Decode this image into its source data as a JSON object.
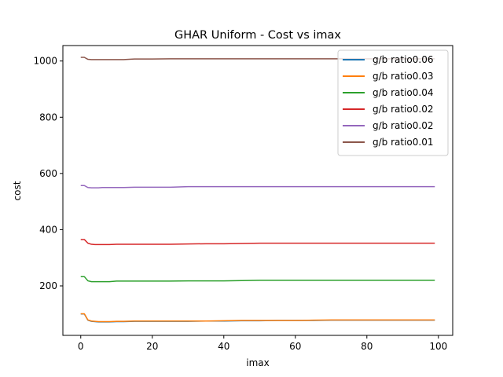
{
  "chart_data": {
    "type": "line",
    "title": "GHAR Uniform - Cost vs imax",
    "xlabel": "imax",
    "ylabel": "cost",
    "xlim": [
      -5,
      104
    ],
    "ylim": [
      24,
      1055
    ],
    "xticks": [
      0,
      20,
      40,
      60,
      80,
      100
    ],
    "yticks": [
      200,
      400,
      600,
      800,
      1000
    ],
    "legend_position": "top-right",
    "grid": false,
    "series": [
      {
        "name": "g/b ratio0.06",
        "color": "#1f77b4",
        "x": [
          0,
          1,
          2,
          3,
          4,
          5,
          6,
          8,
          10,
          12,
          15,
          20,
          25,
          30,
          35,
          40,
          45,
          50,
          55,
          60,
          65,
          70,
          75,
          80,
          85,
          90,
          95,
          99
        ],
        "y": [
          100,
          100,
          78,
          74,
          73,
          72,
          72,
          72,
          73,
          73,
          74,
          74,
          74,
          74,
          75,
          75,
          76,
          76,
          77,
          77,
          77,
          78,
          78,
          78,
          78,
          78,
          78,
          78
        ]
      },
      {
        "name": "g/b ratio0.03",
        "color": "#ff7f0e",
        "x": [
          0,
          1,
          2,
          3,
          4,
          5,
          6,
          8,
          10,
          12,
          15,
          20,
          25,
          30,
          35,
          40,
          45,
          50,
          55,
          60,
          65,
          70,
          75,
          80,
          85,
          90,
          95,
          99
        ],
        "y": [
          101,
          101,
          79,
          75,
          74,
          73,
          73,
          73,
          74,
          74,
          75,
          75,
          75,
          75,
          75,
          76,
          77,
          77,
          77,
          77,
          78,
          79,
          79,
          79,
          79,
          79,
          79,
          79
        ]
      },
      {
        "name": "g/b ratio0.04",
        "color": "#2ca02c",
        "x": [
          0,
          1,
          2,
          3,
          4,
          5,
          6,
          8,
          10,
          12,
          15,
          20,
          25,
          30,
          35,
          40,
          45,
          50,
          55,
          60,
          65,
          70,
          75,
          80,
          85,
          90,
          95,
          99
        ],
        "y": [
          233,
          233,
          218,
          215,
          215,
          215,
          215,
          215,
          217,
          217,
          217,
          217,
          217,
          218,
          218,
          218,
          219,
          220,
          220,
          220,
          220,
          220,
          220,
          220,
          220,
          220,
          220,
          220
        ]
      },
      {
        "name": "g/b ratio0.02",
        "color": "#d62728",
        "x": [
          0,
          1,
          2,
          3,
          4,
          5,
          6,
          8,
          10,
          12,
          15,
          20,
          25,
          30,
          35,
          40,
          45,
          50,
          55,
          60,
          65,
          70,
          75,
          80,
          85,
          90,
          95,
          99
        ],
        "y": [
          365,
          365,
          352,
          348,
          347,
          347,
          347,
          347,
          348,
          348,
          348,
          348,
          348,
          349,
          350,
          350,
          351,
          352,
          352,
          352,
          352,
          352,
          352,
          352,
          352,
          352,
          352,
          352
        ]
      },
      {
        "name": "g/b ratio0.02",
        "color": "#9467bd",
        "x": [
          0,
          1,
          2,
          3,
          4,
          5,
          6,
          8,
          10,
          12,
          15,
          20,
          25,
          30,
          35,
          40,
          45,
          50,
          55,
          60,
          65,
          70,
          75,
          80,
          85,
          90,
          95,
          99
        ],
        "y": [
          557,
          557,
          550,
          549,
          549,
          549,
          550,
          550,
          550,
          550,
          551,
          551,
          551,
          553,
          553,
          553,
          553,
          553,
          553,
          553,
          553,
          553,
          553,
          553,
          553,
          553,
          553,
          553
        ]
      },
      {
        "name": "g/b ratio0.01",
        "color": "#8c564b",
        "x": [
          0,
          1,
          2,
          3,
          4,
          5,
          6,
          8,
          10,
          12,
          15,
          20,
          25,
          30,
          35,
          40,
          45,
          50,
          55,
          60,
          65,
          70,
          75,
          80,
          85,
          90,
          95,
          99
        ],
        "y": [
          1013,
          1013,
          1006,
          1005,
          1005,
          1005,
          1005,
          1005,
          1005,
          1005,
          1007,
          1007,
          1008,
          1008,
          1008,
          1008,
          1008,
          1008,
          1008,
          1008,
          1008,
          1008,
          1008,
          1008,
          1008,
          1008,
          1008,
          1008
        ]
      }
    ]
  }
}
